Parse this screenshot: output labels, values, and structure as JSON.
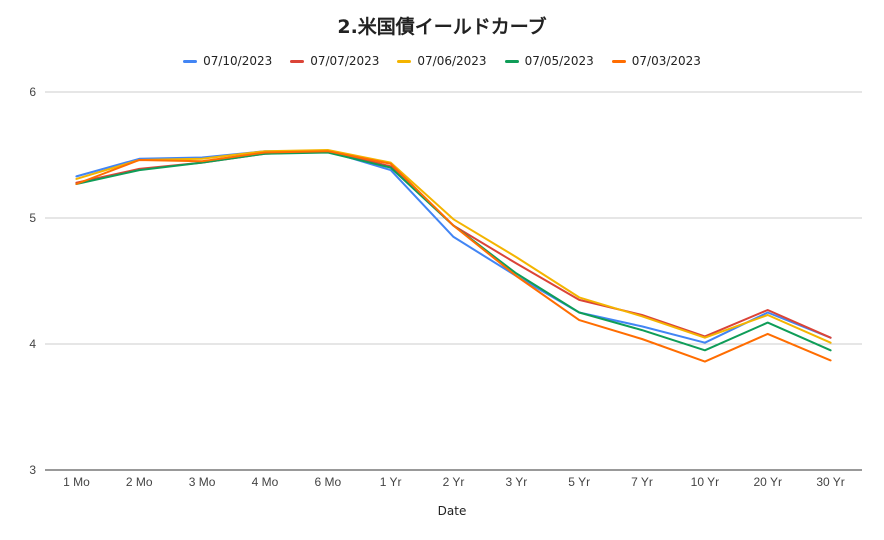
{
  "chart_data": {
    "type": "line",
    "title": "2.米国債イールドカーブ",
    "xlabel": "Date",
    "ylabel": "",
    "ylim": [
      3,
      6
    ],
    "yticks": [
      3,
      4,
      5,
      6
    ],
    "grid": true,
    "legend_position": "top",
    "categories": [
      "1 Mo",
      "2 Mo",
      "3 Mo",
      "4 Mo",
      "6 Mo",
      "1 Yr",
      "2 Yr",
      "3 Yr",
      "5 Yr",
      "7 Yr",
      "10 Yr",
      "20 Yr",
      "30 Yr"
    ],
    "series": [
      {
        "name": "07/10/2023",
        "color": "#4285f4",
        "values": [
          5.33,
          5.47,
          5.48,
          5.53,
          5.53,
          5.38,
          4.85,
          4.54,
          4.25,
          4.14,
          4.01,
          4.25,
          4.05
        ]
      },
      {
        "name": "07/07/2023",
        "color": "#db4437",
        "values": [
          5.28,
          5.39,
          5.44,
          5.51,
          5.53,
          5.41,
          4.94,
          4.64,
          4.35,
          4.23,
          4.06,
          4.27,
          4.05
        ]
      },
      {
        "name": "07/06/2023",
        "color": "#f4b400",
        "values": [
          5.31,
          5.46,
          5.47,
          5.53,
          5.54,
          5.44,
          4.99,
          4.69,
          4.37,
          4.22,
          4.05,
          4.23,
          4.01
        ]
      },
      {
        "name": "07/05/2023",
        "color": "#0f9d58",
        "values": [
          5.27,
          5.38,
          5.44,
          5.51,
          5.52,
          5.4,
          4.94,
          4.56,
          4.25,
          4.11,
          3.95,
          4.17,
          3.95
        ]
      },
      {
        "name": "07/03/2023",
        "color": "#ff6d01",
        "values": [
          5.27,
          5.46,
          5.45,
          5.52,
          5.53,
          5.43,
          4.94,
          4.54,
          4.19,
          4.04,
          3.86,
          4.08,
          3.87
        ]
      }
    ]
  }
}
